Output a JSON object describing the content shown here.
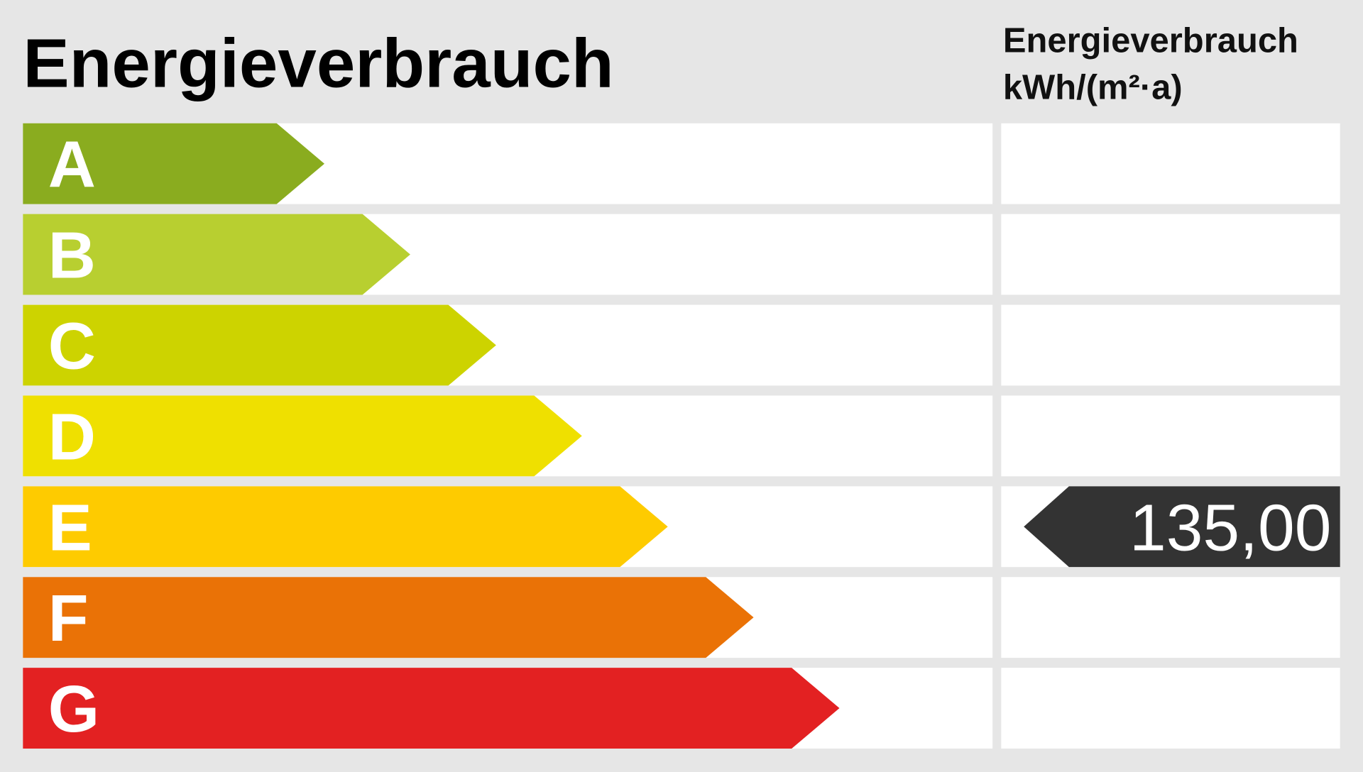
{
  "title": "Energieverbrauch",
  "column_header": {
    "line1": "Energieverbrauch",
    "line2": "kWh/(m²·a)"
  },
  "classes": [
    {
      "label": "A",
      "color": "#8aac1f"
    },
    {
      "label": "B",
      "color": "#b8cf30"
    },
    {
      "label": "C",
      "color": "#cdd300"
    },
    {
      "label": "D",
      "color": "#efe000"
    },
    {
      "label": "E",
      "color": "#fecb00",
      "value": "135,00"
    },
    {
      "label": "F",
      "color": "#ea7206"
    },
    {
      "label": "G",
      "color": "#e32122"
    }
  ]
}
